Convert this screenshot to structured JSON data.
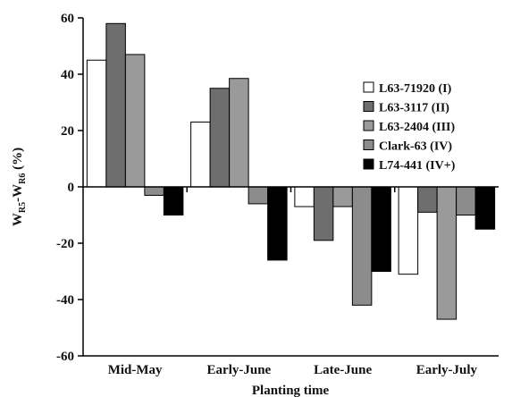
{
  "chart_data": {
    "type": "bar",
    "xlabel": "Planting time",
    "ylabel": "W",
    "ylabel_sub1": "R5",
    "ylabel_mid": "-W",
    "ylabel_sub2": "R6",
    "ylabel_unit": " (%)",
    "ylim": [
      -60,
      60
    ],
    "yticks": [
      60,
      40,
      20,
      0,
      -20,
      -40,
      -60
    ],
    "categories": [
      "Mid-May",
      "Early-June",
      "Late-June",
      "Early-July"
    ],
    "series": [
      {
        "name": "L63-71920 (I)",
        "color": "#ffffff",
        "values": [
          45,
          23,
          -7,
          -31
        ]
      },
      {
        "name": "L63-3117 (II)",
        "color": "#6e6e6e",
        "values": [
          58,
          35,
          -19,
          -9
        ]
      },
      {
        "name": "L63-2404 (III)",
        "color": "#9a9a9a",
        "values": [
          47,
          38.5,
          -7,
          -47
        ]
      },
      {
        "name": "Clark-63 (IV)",
        "color": "#8c8c8c",
        "values": [
          -3,
          -6,
          -42,
          -10
        ]
      },
      {
        "name": "L74-441 (IV+)",
        "color": "#000000",
        "values": [
          -10,
          -26,
          -30,
          -15
        ]
      }
    ],
    "grid": false,
    "legend_position": "right"
  }
}
